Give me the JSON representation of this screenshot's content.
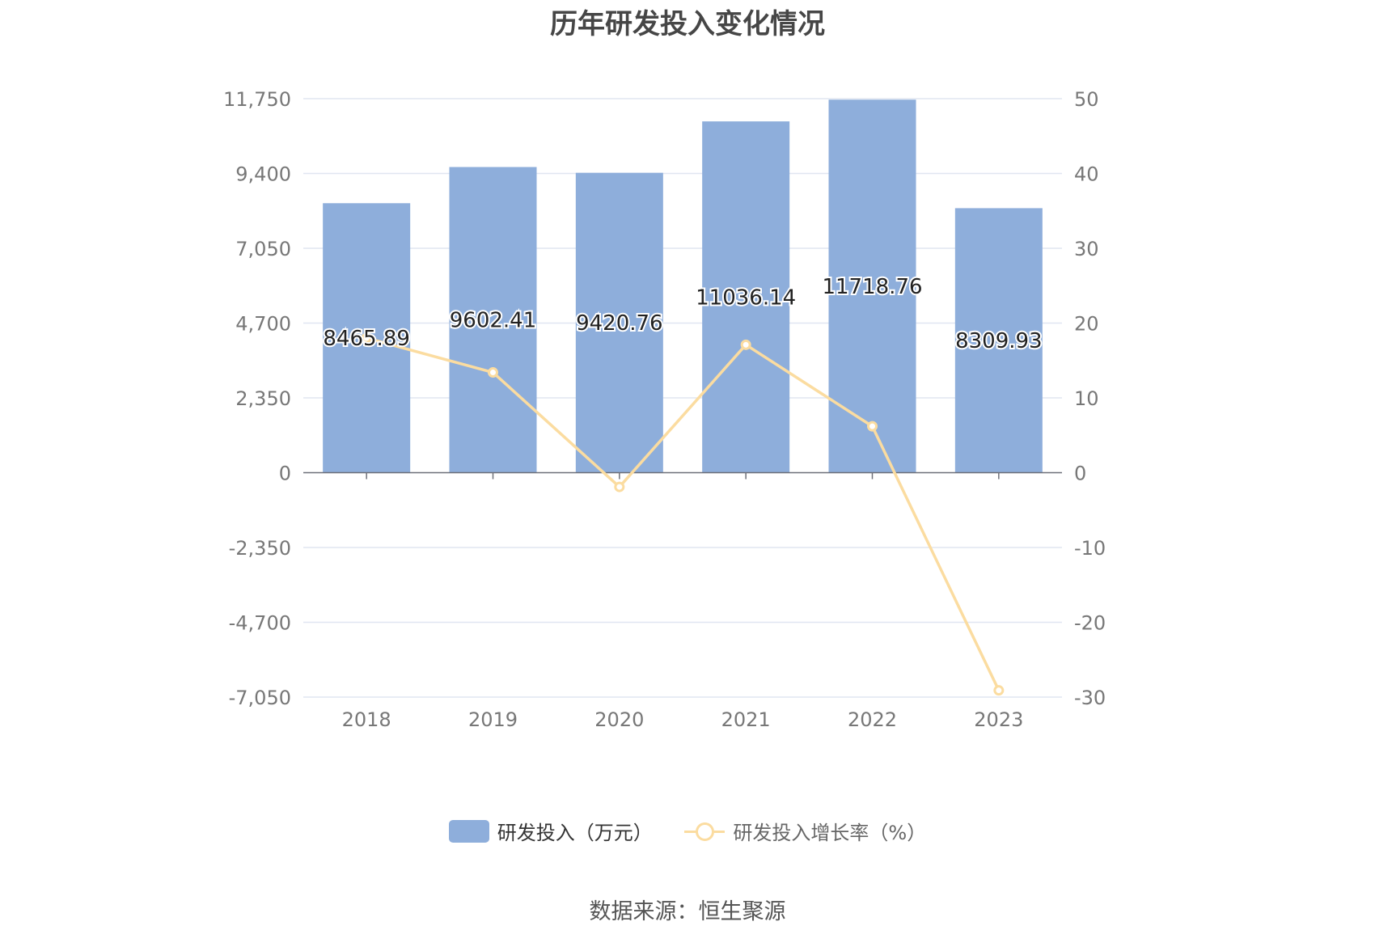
{
  "title": "历年研发投入变化情况",
  "source": "数据来源：恒生聚源",
  "legend": {
    "bar_label": "研发投入（万元）",
    "line_label": "研发投入增长率（%）"
  },
  "colors": {
    "bar": "#8eaedb",
    "line": "#fbdca0",
    "grid": "#e0e6f1",
    "axis": "#6e7079",
    "tick_text": "#777777"
  },
  "chart_data": {
    "type": "bar",
    "categories": [
      "2018",
      "2019",
      "2020",
      "2021",
      "2022",
      "2023"
    ],
    "series": [
      {
        "name": "研发投入（万元）",
        "type": "bar",
        "axis": "left",
        "values": [
          8465.89,
          9602.41,
          9420.76,
          11036.14,
          11718.76,
          8309.93
        ],
        "labels": [
          "8465.89",
          "9602.41",
          "9420.76",
          "11036.14",
          "11718.76",
          "8309.93"
        ]
      },
      {
        "name": "研发投入增长率（%）",
        "type": "line",
        "axis": "right",
        "values": [
          18.0,
          13.4,
          -1.9,
          17.1,
          6.2,
          -29.1
        ]
      }
    ],
    "y_left": {
      "ticks": [
        11750,
        9400,
        7050,
        4700,
        2350,
        0,
        -2350,
        -4700,
        -7050
      ],
      "tick_labels": [
        "11,750",
        "9,400",
        "7,050",
        "4,700",
        "2,350",
        "0",
        "-2,350",
        "-4,700",
        "-7,050"
      ],
      "range": [
        -7050,
        11750
      ]
    },
    "y_right": {
      "ticks": [
        50,
        40,
        30,
        20,
        10,
        0,
        -10,
        -20,
        -30
      ],
      "tick_labels": [
        "50",
        "40",
        "30",
        "20",
        "10",
        "0",
        "-10",
        "-20",
        "-30"
      ],
      "range": [
        -30,
        50
      ]
    },
    "grid": true,
    "legend_position": "bottom"
  }
}
